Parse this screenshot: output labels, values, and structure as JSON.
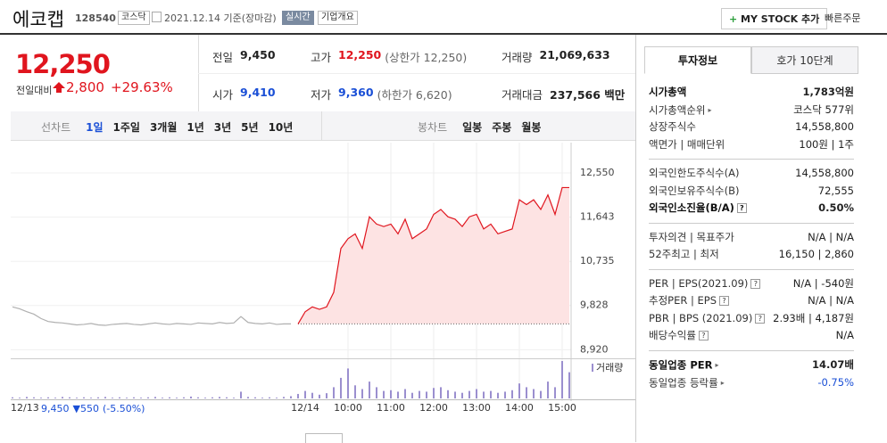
{
  "header": {
    "name": "에코캡",
    "code": "128540",
    "market": "코스닥",
    "date": "2021.12.14 기준(장마감)",
    "realtime": "실시간",
    "company": "기업개요",
    "mystock": "MY STOCK 추가",
    "quick": "빠른주문"
  },
  "price": {
    "current": "12,250",
    "change_label": "전일대비",
    "change": "2,800",
    "rate": "+29.63%"
  },
  "info": [
    {
      "label": "전일",
      "value": "9,450",
      "color": "#222"
    },
    {
      "label": "고가",
      "value": "12,250",
      "extra": "(상한가 12,250)",
      "color": "#e0151e"
    },
    {
      "label": "거래량",
      "value": "21,069,633",
      "color": "#222"
    },
    {
      "label": "시가",
      "value": "9,410",
      "color": "#1a4fd6"
    },
    {
      "label": "저가",
      "value": "9,360",
      "extra": "(하한가 6,620)",
      "color": "#1a4fd6"
    },
    {
      "label": "거래대금",
      "value": "237,566 백만",
      "color": "#222"
    }
  ],
  "periods": [
    "선차트",
    "1일",
    "1주일",
    "3개월",
    "1년",
    "3년",
    "5년",
    "10년"
  ],
  "candles": [
    "봉차트",
    "일봉",
    "주봉",
    "월봉"
  ],
  "chart": {
    "type": "line",
    "ylim": [
      8780,
      12990
    ],
    "xlim": [
      0,
      80
    ],
    "yticks": [
      {
        "value": 12550,
        "label": "12,550"
      },
      {
        "value": 11643,
        "label": "11,643"
      },
      {
        "value": 10735,
        "label": "10,735"
      },
      {
        "value": 9828,
        "label": "9,828"
      },
      {
        "value": 8920,
        "label": "8,920"
      }
    ],
    "xticks": [
      {
        "value": 0,
        "label": "12/13"
      },
      {
        "value": 41,
        "label": "12/14"
      },
      {
        "value": 47,
        "label": "10:00"
      },
      {
        "value": 53,
        "label": "11:00"
      },
      {
        "value": 59,
        "label": "12:00"
      },
      {
        "value": 65,
        "label": "13:00"
      },
      {
        "value": 71,
        "label": "14:00"
      },
      {
        "value": 77,
        "label": "15:00"
      }
    ],
    "reference": 9450,
    "series": [
      {
        "color": "#b0b0b0",
        "values": [
          9800,
          9760,
          9700,
          9650,
          9560,
          9500,
          9480,
          9470,
          9450,
          9430,
          9440,
          9460,
          9430,
          9420,
          9440,
          9450,
          9460,
          9440,
          9430,
          9450,
          9470,
          9450,
          9440,
          9460,
          9450,
          9440,
          9470,
          9460,
          9450,
          9480,
          9460,
          9470,
          9600,
          9480,
          9460,
          9450,
          9470,
          9440,
          9450,
          9450,
          null,
          null,
          null,
          null,
          null,
          null,
          null,
          null,
          null,
          null,
          null,
          null,
          null,
          null,
          null,
          null,
          null,
          null,
          null,
          null,
          null,
          null,
          null,
          null,
          null,
          null,
          null,
          null,
          null,
          null,
          null,
          null,
          null,
          null,
          null,
          null,
          null,
          null,
          null
        ]
      },
      {
        "color": "#e0151e",
        "values": [
          null,
          null,
          null,
          null,
          null,
          null,
          null,
          null,
          null,
          null,
          null,
          null,
          null,
          null,
          null,
          null,
          null,
          null,
          null,
          null,
          null,
          null,
          null,
          null,
          null,
          null,
          null,
          null,
          null,
          null,
          null,
          null,
          null,
          null,
          null,
          null,
          null,
          null,
          null,
          null,
          9450,
          9700,
          9800,
          9750,
          9800,
          10100,
          11000,
          11200,
          11300,
          11000,
          11650,
          11500,
          11450,
          11500,
          11300,
          11600,
          11200,
          11300,
          11400,
          11700,
          11800,
          11650,
          11600,
          11450,
          11650,
          11700,
          11400,
          11500,
          11300,
          11350,
          11400,
          12000,
          11900,
          12000,
          11800,
          12100,
          11700,
          12250,
          12250
        ]
      }
    ],
    "volume": {
      "name": "거래량",
      "color": "#9b8fcf",
      "ylim": [
        0,
        100
      ],
      "values": [
        3,
        2,
        4,
        3,
        2,
        3,
        2,
        4,
        3,
        2,
        3,
        2,
        3,
        4,
        2,
        3,
        2,
        3,
        2,
        3,
        4,
        2,
        3,
        2,
        3,
        5,
        3,
        2,
        3,
        4,
        3,
        2,
        18,
        4,
        3,
        2,
        3,
        2,
        4,
        6,
        12,
        20,
        15,
        10,
        14,
        30,
        55,
        80,
        35,
        25,
        45,
        30,
        20,
        22,
        18,
        25,
        15,
        20,
        18,
        28,
        30,
        22,
        18,
        15,
        20,
        25,
        18,
        20,
        15,
        18,
        22,
        40,
        30,
        25,
        20,
        45,
        30,
        100,
        70
      ]
    }
  },
  "prevday": {
    "close": "9,450",
    "change": "▼550",
    "rate": "(-5.50%)"
  },
  "tabs": [
    "투자정보",
    "호가 10단계"
  ],
  "sections": [
    [
      {
        "label": "시가총액",
        "value": "1,783억원",
        "bold": true
      },
      {
        "label": "시가총액순위",
        "value": "코스닥 577위",
        "arrow": true
      },
      {
        "label": "상장주식수",
        "value": "14,558,800"
      },
      {
        "label": "액면가 | 매매단위",
        "value": "100원 | 1주"
      }
    ],
    [
      {
        "label": "외국인한도주식수(A)",
        "value": "14,558,800"
      },
      {
        "label": "외국인보유주식수(B)",
        "value": "72,555"
      },
      {
        "label": "외국인소진율(B/A)",
        "value": "0.50%",
        "bold": true,
        "help": true
      }
    ],
    [
      {
        "label": "투자의견 | 목표주가",
        "value": "N/A | N/A"
      },
      {
        "label": "52주최고 | 최저",
        "value": "16,150 | 2,860"
      }
    ],
    [
      {
        "label": "PER | EPS(2021.09)",
        "value": "N/A | -540원",
        "help": true
      },
      {
        "label": "추정PER | EPS",
        "value": "N/A | N/A",
        "help": true
      },
      {
        "label": "PBR | BPS (2021.09)",
        "value": "2.93배 | 4,187원",
        "help": true
      },
      {
        "label": "배당수익률",
        "value": "N/A",
        "help": true
      }
    ],
    [
      {
        "label": "동일업종 PER",
        "value": "14.07배",
        "bold": true,
        "arrow": true
      },
      {
        "label": "동일업종 등락률",
        "value": "-0.75%",
        "arrow": true,
        "color": "#1a4fd6"
      }
    ]
  ]
}
